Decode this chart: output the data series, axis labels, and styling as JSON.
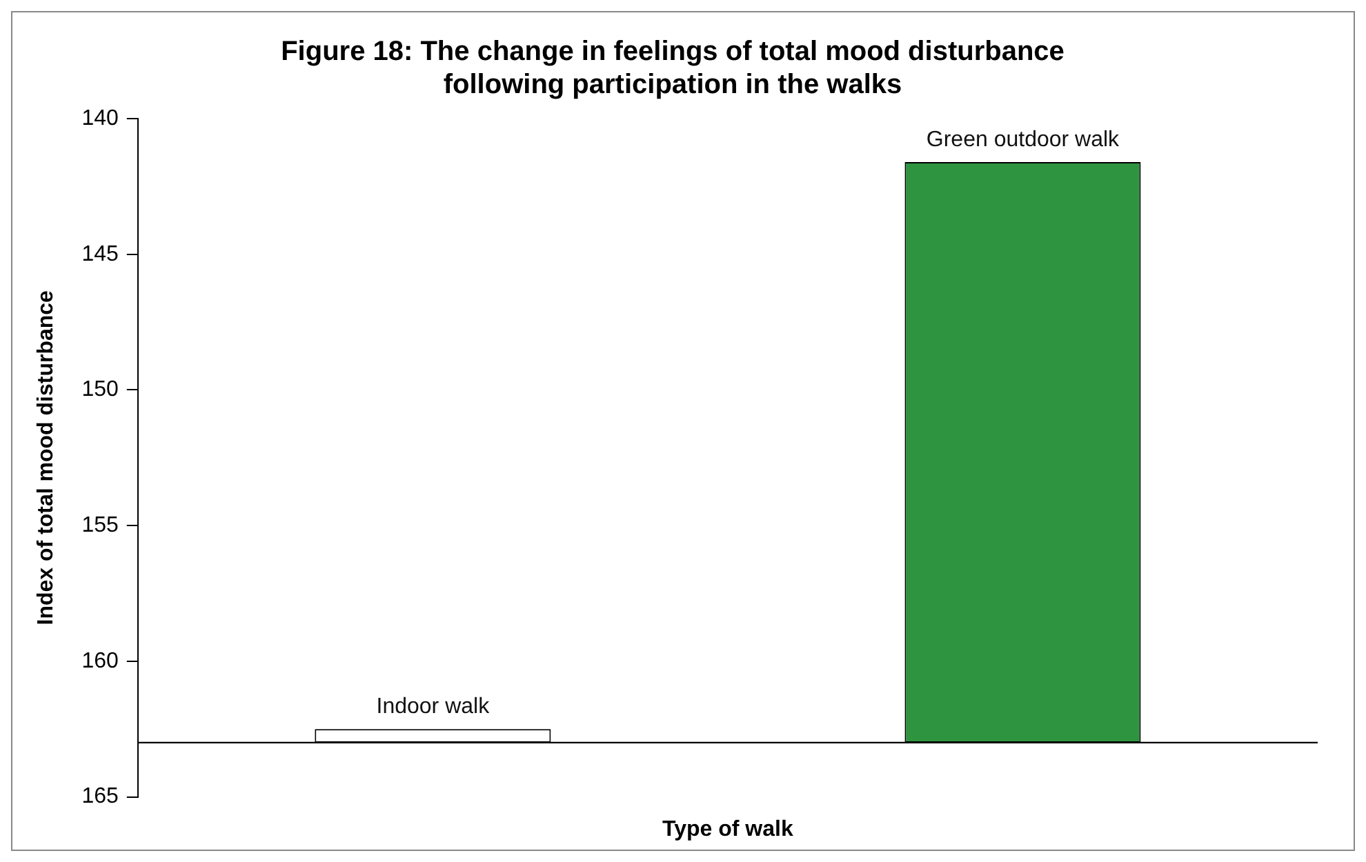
{
  "chart_data": {
    "type": "bar",
    "title": "Figure 18: The change in feelings of total mood disturbance\nfollowing participation in the walks",
    "xlabel": "Type of walk",
    "ylabel": "Index of total mood disturbance",
    "categories": [
      "Indoor walk",
      "Green outdoor walk"
    ],
    "base": [
      163,
      163
    ],
    "values": [
      -0.5,
      -21.4
    ],
    "colors": [
      "#ffffff",
      "#2e9440"
    ],
    "ylim": [
      165,
      140
    ],
    "yticks": [
      140,
      145,
      150,
      155,
      160,
      165
    ],
    "ref_lines": [
      {
        "axis": "y",
        "value": 163,
        "color": "#000000"
      }
    ],
    "grid": false,
    "legend": false
  }
}
